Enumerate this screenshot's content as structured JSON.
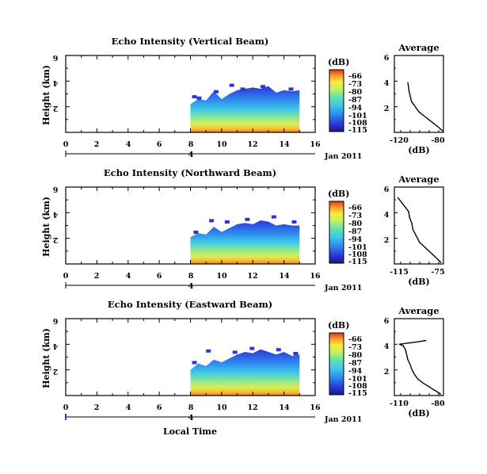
{
  "chart_data": [
    {
      "type": "heatmap",
      "title": "Echo Intensity (Vertical Beam)",
      "ylabel": "Height (km)",
      "xlim": [
        0,
        16
      ],
      "ylim": [
        0,
        6
      ],
      "x_ticks": [
        "0",
        "2",
        "4",
        "6",
        "8",
        "10",
        "12",
        "14",
        "16"
      ],
      "y_ticks": [
        "2",
        "4",
        "6"
      ],
      "colorbar": {
        "label": "(dB)",
        "ticks": [
          "-66",
          "-73",
          "-80",
          "-87",
          "-94",
          "-101",
          "-108",
          "-115"
        ]
      },
      "date_axis": {
        "day_label": "4",
        "month_label": "Jan 2011"
      },
      "data_x_range": [
        8,
        15
      ],
      "echo_top_profile": [
        [
          8,
          2.2
        ],
        [
          8.5,
          2.6
        ],
        [
          9,
          2.5
        ],
        [
          9.5,
          3.2
        ],
        [
          10,
          2.6
        ],
        [
          10.5,
          3.0
        ],
        [
          11,
          3.3
        ],
        [
          11.5,
          3.4
        ],
        [
          12,
          3.5
        ],
        [
          12.5,
          3.4
        ],
        [
          13,
          3.6
        ],
        [
          13.5,
          3.1
        ],
        [
          14,
          3.3
        ],
        [
          14.5,
          3.2
        ],
        [
          15,
          3.3
        ]
      ],
      "sparse_points": [
        [
          8.1,
          2.9
        ],
        [
          8.4,
          2.8
        ],
        [
          9.5,
          3.3
        ],
        [
          10.5,
          3.8
        ],
        [
          11.2,
          3.5
        ],
        [
          12.5,
          3.7
        ],
        [
          14.3,
          3.5
        ]
      ],
      "profile": {
        "title": "Average",
        "xlabel": "(dB)",
        "xlim": [
          -120,
          -80
        ],
        "x_ticks": [
          "-120",
          "-80"
        ],
        "y_ticks": [
          "2",
          "4",
          "6"
        ],
        "points": [
          [
            -80.5,
            0.1
          ],
          [
            -84,
            0.4
          ],
          [
            -88,
            0.7
          ],
          [
            -92,
            1.0
          ],
          [
            -96,
            1.3
          ],
          [
            -100,
            1.6
          ],
          [
            -103,
            2.0
          ],
          [
            -106,
            2.4
          ],
          [
            -107,
            2.8
          ],
          [
            -108,
            3.2
          ],
          [
            -108.5,
            3.6
          ],
          [
            -109,
            3.9
          ]
        ]
      }
    },
    {
      "type": "heatmap",
      "title": "Echo Intensity (Northward Beam)",
      "ylabel": "Height (km)",
      "xlim": [
        0,
        16
      ],
      "ylim": [
        0,
        6
      ],
      "x_ticks": [
        "0",
        "2",
        "4",
        "6",
        "8",
        "10",
        "12",
        "14",
        "16"
      ],
      "y_ticks": [
        "2",
        "4",
        "6"
      ],
      "colorbar": {
        "label": "(dB)",
        "ticks": [
          "-66",
          "-73",
          "-80",
          "-87",
          "-94",
          "-101",
          "-108",
          "-115"
        ]
      },
      "date_axis": {
        "day_label": "4",
        "month_label": "Jan 2011"
      },
      "data_x_range": [
        8,
        15
      ],
      "echo_top_profile": [
        [
          8,
          2.1
        ],
        [
          8.5,
          2.4
        ],
        [
          9,
          2.3
        ],
        [
          9.5,
          2.9
        ],
        [
          10,
          2.5
        ],
        [
          10.5,
          2.8
        ],
        [
          11,
          3.1
        ],
        [
          11.5,
          3.2
        ],
        [
          12,
          3.1
        ],
        [
          12.5,
          3.4
        ],
        [
          13,
          3.3
        ],
        [
          13.5,
          3.0
        ],
        [
          14,
          3.1
        ],
        [
          14.5,
          3.0
        ],
        [
          15,
          3.0
        ]
      ],
      "sparse_points": [
        [
          8.2,
          2.6
        ],
        [
          9.2,
          3.5
        ],
        [
          10.2,
          3.4
        ],
        [
          11.5,
          3.6
        ],
        [
          13.2,
          3.8
        ],
        [
          14.5,
          3.4
        ]
      ],
      "profile": {
        "title": "Average",
        "xlabel": "(dB)",
        "xlim": [
          -120,
          -75
        ],
        "x_ticks": [
          "-115",
          "-75"
        ],
        "y_ticks": [
          "2",
          "4",
          "6"
        ],
        "points": [
          [
            -77,
            0.1
          ],
          [
            -82,
            0.5
          ],
          [
            -87,
            0.9
          ],
          [
            -92,
            1.3
          ],
          [
            -97,
            1.7
          ],
          [
            -100,
            2.2
          ],
          [
            -103,
            2.7
          ],
          [
            -104,
            3.2
          ],
          [
            -106,
            3.6
          ],
          [
            -107,
            4.1
          ],
          [
            -117,
            5.2
          ]
        ]
      }
    },
    {
      "type": "heatmap",
      "title": "Echo Intensity (Eastward Beam)",
      "ylabel": "Height (km)",
      "xlim": [
        0,
        16
      ],
      "ylim": [
        0,
        6
      ],
      "x_ticks": [
        "0",
        "2",
        "4",
        "6",
        "8",
        "10",
        "12",
        "14",
        "16"
      ],
      "y_ticks": [
        "2",
        "4",
        "6"
      ],
      "colorbar": {
        "label": "(dB)",
        "ticks": [
          "-66",
          "-73",
          "-80",
          "-87",
          "-94",
          "-101",
          "-108",
          "-115"
        ]
      },
      "date_axis": {
        "day_label": "4",
        "month_label": "Jan 2011"
      },
      "xlabel": "Local Time",
      "data_x_range": [
        8,
        15
      ],
      "echo_top_profile": [
        [
          8,
          2.0
        ],
        [
          8.5,
          2.5
        ],
        [
          9,
          2.3
        ],
        [
          9.5,
          2.8
        ],
        [
          10,
          2.6
        ],
        [
          10.5,
          2.9
        ],
        [
          11,
          3.2
        ],
        [
          11.5,
          3.4
        ],
        [
          12,
          3.3
        ],
        [
          12.5,
          3.6
        ],
        [
          13,
          3.4
        ],
        [
          13.5,
          3.2
        ],
        [
          14,
          3.4
        ],
        [
          14.5,
          3.1
        ],
        [
          15,
          3.2
        ]
      ],
      "sparse_points": [
        [
          8.1,
          2.7
        ],
        [
          9.0,
          3.6
        ],
        [
          10.7,
          3.5
        ],
        [
          11.8,
          3.8
        ],
        [
          13.5,
          3.7
        ],
        [
          14.6,
          3.4
        ]
      ],
      "profile": {
        "title": "Average",
        "xlabel": "(dB)",
        "xlim": [
          -115,
          -75
        ],
        "x_ticks": [
          "-110",
          "-80"
        ],
        "y_ticks": [
          "2",
          "4",
          "6"
        ],
        "points": [
          [
            -77,
            0.1
          ],
          [
            -82,
            0.4
          ],
          [
            -87,
            0.7
          ],
          [
            -92,
            1.0
          ],
          [
            -96,
            1.3
          ],
          [
            -99,
            1.7
          ],
          [
            -101,
            2.1
          ],
          [
            -102,
            2.4
          ],
          [
            -104,
            2.8
          ],
          [
            -105,
            3.2
          ],
          [
            -106,
            3.6
          ],
          [
            -108,
            3.9
          ],
          [
            -111,
            4.0
          ],
          [
            -95,
            4.2
          ],
          [
            -89,
            4.3
          ]
        ]
      }
    }
  ]
}
